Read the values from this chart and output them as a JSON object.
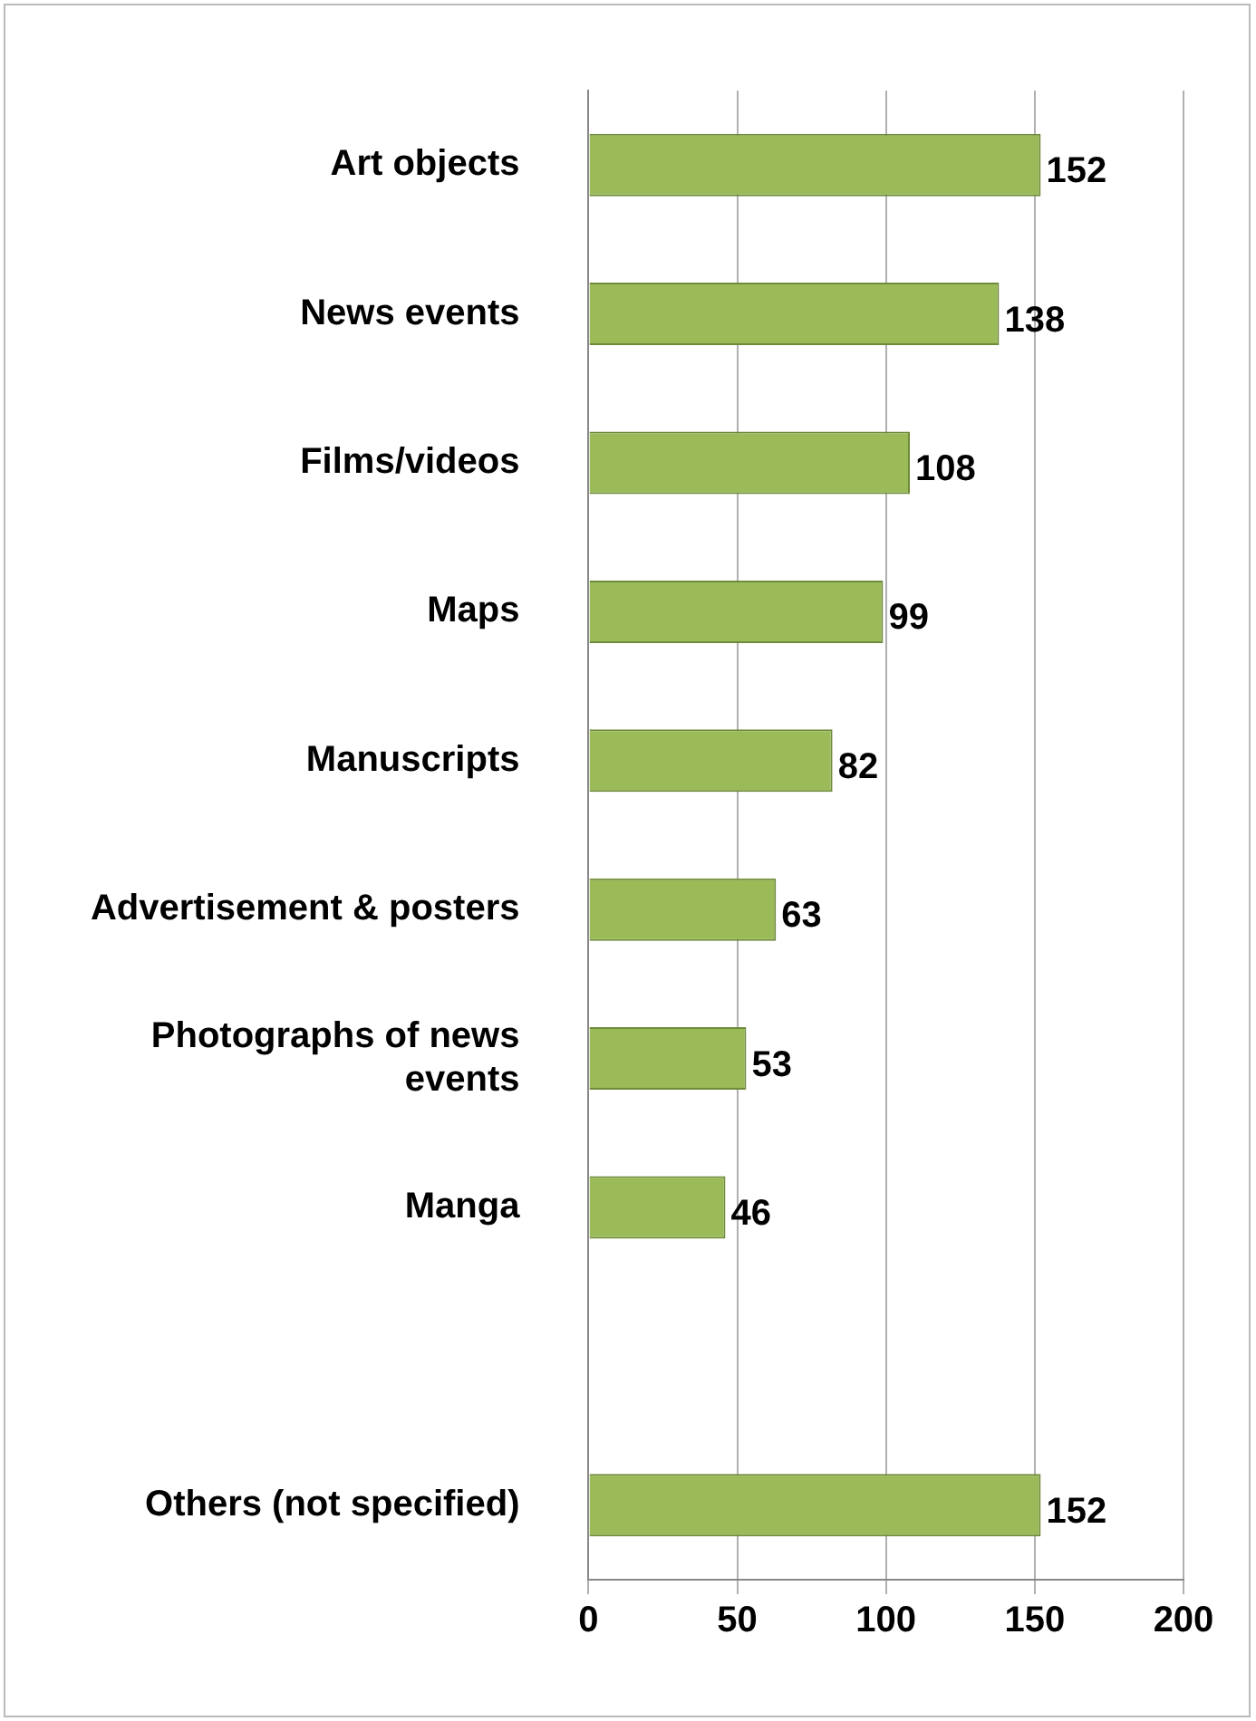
{
  "chart_data": {
    "type": "bar",
    "orientation": "horizontal",
    "categories": [
      "Art objects",
      "News events",
      "Films/videos",
      "Maps",
      "Manuscripts",
      "Advertisement & posters",
      "Photographs of news events",
      "Manga",
      null,
      "Others (not specified)"
    ],
    "values": [
      152,
      138,
      108,
      99,
      82,
      63,
      53,
      46,
      null,
      152
    ],
    "color": "#9bbb59",
    "xlim": [
      0,
      200
    ],
    "xticks": [
      0,
      50,
      100,
      150,
      200
    ],
    "grid": "x",
    "data_labels": true
  }
}
